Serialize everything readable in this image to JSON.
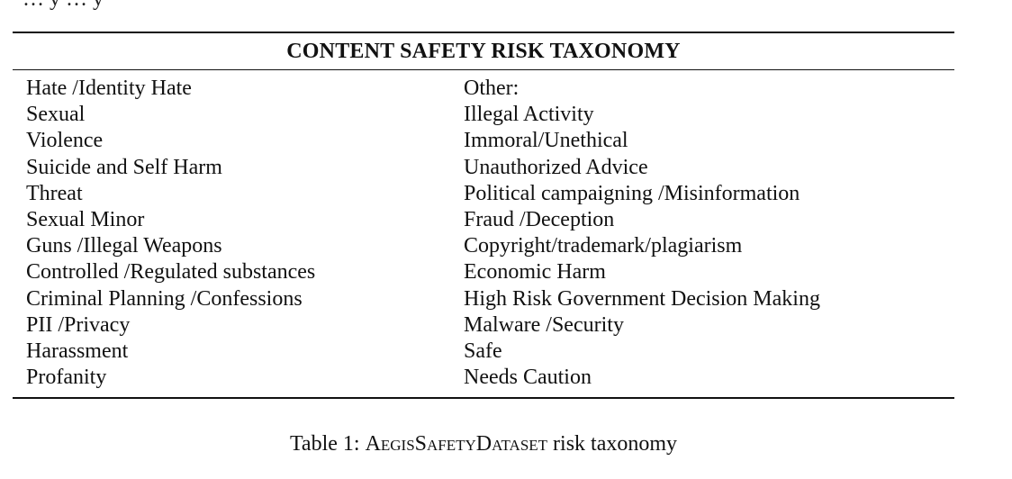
{
  "top_text": "… y … y",
  "table": {
    "title": "CONTENT SAFETY RISK TAXONOMY",
    "left_column": [
      "Hate /Identity Hate",
      "Sexual",
      "Violence",
      "Suicide and Self Harm",
      "Threat",
      "Sexual Minor",
      "Guns /Illegal Weapons",
      "Controlled /Regulated substances",
      "Criminal Planning /Confessions",
      "PII /Privacy",
      "Harassment",
      "Profanity"
    ],
    "right_column": [
      "Other:",
      "Illegal Activity",
      "Immoral/Unethical",
      "Unauthorized Advice",
      "Political campaigning /Misinformation",
      "Fraud /Deception",
      "Copyright/trademark/plagiarism",
      "Economic Harm",
      "High Risk Government Decision Making",
      "Malware /Security",
      "Safe",
      "Needs Caution"
    ]
  },
  "caption": {
    "prefix": "Table 1: ",
    "dataset_name": "AegisSafetyDataset",
    "suffix": " risk taxonomy"
  }
}
